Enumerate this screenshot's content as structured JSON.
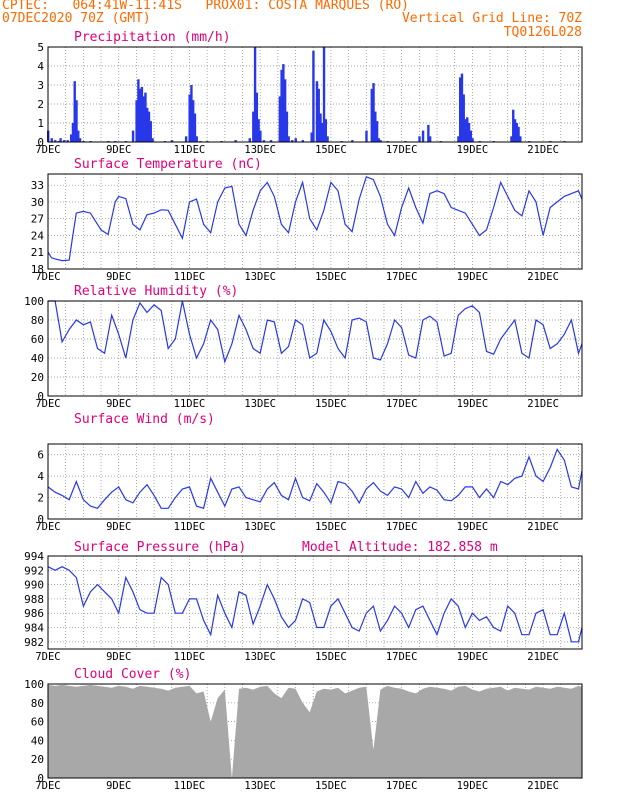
{
  "header": {
    "line1_left": "CPTEC:   064:41W-11:41S   PROX01: COSTA MARQUES (RO)",
    "line2_left": "07DEC2020 70Z (GMT)",
    "line2_right": "Vertical Grid Line: 70Z",
    "line3_right": "TQ0126L028"
  },
  "colors": {
    "header": "#ff6a00",
    "titles": "#e0007a",
    "line": "#2838e8",
    "bars": "#2838e8",
    "cloud": "#a8a8a8",
    "grid": "#888888"
  },
  "x_axis": {
    "ticks": [
      "7DEC",
      "9DEC",
      "11DEC",
      "13DEC",
      "15DEC",
      "17DEC",
      "19DEC",
      "21DEC"
    ],
    "tick_days": [
      7,
      9,
      11,
      13,
      15,
      17,
      19,
      21
    ],
    "range_days": [
      7,
      22.1
    ]
  },
  "chart_data": [
    {
      "type": "bar",
      "title": "Precipitation (mm/h)",
      "ylim": [
        0,
        5
      ],
      "yticks": [
        "0",
        "1",
        "2",
        "3",
        "4",
        "5"
      ],
      "ytick_values": [
        0,
        1,
        2,
        3,
        4,
        5
      ],
      "x_days": [
        7.0,
        7.1,
        7.2,
        7.3,
        7.35,
        7.45,
        7.55,
        7.65,
        7.7,
        7.75,
        7.8,
        7.85,
        7.9,
        8.0,
        8.2,
        8.7,
        8.9,
        9.2,
        9.4,
        9.5,
        9.55,
        9.6,
        9.65,
        9.7,
        9.75,
        9.8,
        9.85,
        9.9,
        9.95,
        10.3,
        10.5,
        10.9,
        11.0,
        11.05,
        11.1,
        11.15,
        11.2,
        11.3,
        11.5,
        11.9,
        12.3,
        12.7,
        12.8,
        12.85,
        12.9,
        12.95,
        13.0,
        13.1,
        13.3,
        13.55,
        13.6,
        13.65,
        13.7,
        13.75,
        13.8,
        13.9,
        14.0,
        14.2,
        14.45,
        14.5,
        14.6,
        14.65,
        14.7,
        14.75,
        14.8,
        14.85,
        14.9,
        15.3,
        15.6,
        16.0,
        16.15,
        16.2,
        16.25,
        16.3,
        16.35,
        16.4,
        16.6,
        17.1,
        17.5,
        17.6,
        17.75,
        17.8,
        18.1,
        18.6,
        18.65,
        18.7,
        18.75,
        18.8,
        18.85,
        18.9,
        18.95,
        19.0,
        19.2,
        19.6,
        20.1,
        20.15,
        20.2,
        20.25,
        20.3,
        20.35,
        20.6,
        21.2,
        21.6
      ],
      "values": [
        0.6,
        0.2,
        0.1,
        0.05,
        0.2,
        0.1,
        0.1,
        0.4,
        1.0,
        3.2,
        2.2,
        0.6,
        0.2,
        0.05,
        0.05,
        0.05,
        0.05,
        0.05,
        0.6,
        2.2,
        3.3,
        2.8,
        2.9,
        2.4,
        2.6,
        1.8,
        1.6,
        1.1,
        0.2,
        0.05,
        0.1,
        0.3,
        2.5,
        3.0,
        2.2,
        1.5,
        0.3,
        0.05,
        0.05,
        0.05,
        0.1,
        0.2,
        1.6,
        5.0,
        2.6,
        1.2,
        0.6,
        0.1,
        0.1,
        2.4,
        3.8,
        4.1,
        3.3,
        1.6,
        0.3,
        0.1,
        0.2,
        0.1,
        0.5,
        4.8,
        3.2,
        2.8,
        1.5,
        1.0,
        5.0,
        1.2,
        0.3,
        0.05,
        0.1,
        0.6,
        2.8,
        3.1,
        1.6,
        1.1,
        0.2,
        0.1,
        0.05,
        0.05,
        0.3,
        0.6,
        0.9,
        0.3,
        0.05,
        0.3,
        3.4,
        3.6,
        2.5,
        1.2,
        1.3,
        1.0,
        0.6,
        0.2,
        0.05,
        0.05,
        0.3,
        1.7,
        1.2,
        1.0,
        0.8,
        0.3,
        0.05,
        0.05,
        0.05
      ]
    },
    {
      "type": "line",
      "title": "Surface Temperature (nC)",
      "ylim": [
        18,
        35
      ],
      "yticks": [
        "18",
        "21",
        "24",
        "27",
        "30",
        "33"
      ],
      "ytick_values": [
        18,
        21,
        24,
        27,
        30,
        33
      ],
      "x_days": [
        7.0,
        7.1,
        7.2,
        7.4,
        7.6,
        7.7,
        7.8,
        8.0,
        8.2,
        8.4,
        8.5,
        8.7,
        8.9,
        9.0,
        9.2,
        9.4,
        9.6,
        9.8,
        10.0,
        10.2,
        10.4,
        10.6,
        10.8,
        11.0,
        11.2,
        11.4,
        11.6,
        11.8,
        12.0,
        12.2,
        12.4,
        12.6,
        12.8,
        13.0,
        13.2,
        13.4,
        13.6,
        13.8,
        14.0,
        14.2,
        14.4,
        14.6,
        14.8,
        15.0,
        15.2,
        15.4,
        15.6,
        15.8,
        16.0,
        16.2,
        16.4,
        16.6,
        16.8,
        17.0,
        17.2,
        17.4,
        17.6,
        17.8,
        18.0,
        18.2,
        18.4,
        18.6,
        18.8,
        19.0,
        19.2,
        19.4,
        19.6,
        19.8,
        20.0,
        20.2,
        20.4,
        20.6,
        20.8,
        21.0,
        21.2,
        21.4,
        21.6,
        21.8,
        22.0,
        22.1
      ],
      "values": [
        21,
        20,
        19.8,
        19.5,
        19.6,
        24,
        28,
        28.3,
        28,
        26,
        25,
        24.2,
        30,
        31,
        30.6,
        26,
        25,
        27.7,
        28,
        28.6,
        28.5,
        26,
        23.5,
        30,
        30.5,
        26,
        24.5,
        30,
        32.5,
        32.8,
        26,
        24,
        28.5,
        32,
        33.5,
        31,
        26,
        24.5,
        30,
        33.5,
        27,
        25,
        28.5,
        33.5,
        32,
        26,
        24.7,
        30.5,
        34.5,
        34,
        31,
        26,
        24,
        29,
        32.5,
        29,
        26.2,
        31.5,
        32,
        31.5,
        29,
        28.5,
        28,
        26,
        24,
        25,
        29,
        33.5,
        31,
        28.5,
        27.5,
        32,
        30,
        24,
        29,
        30,
        31,
        31.5,
        32,
        30.5
      ]
    },
    {
      "type": "line",
      "title": "Relative Humidity (%)",
      "ylim": [
        0,
        100
      ],
      "yticks": [
        "0",
        "20",
        "40",
        "60",
        "80",
        "100"
      ],
      "ytick_values": [
        0,
        20,
        40,
        60,
        80,
        100
      ],
      "x_days": [
        7.0,
        7.2,
        7.4,
        7.6,
        7.8,
        8.0,
        8.2,
        8.4,
        8.6,
        8.8,
        9.0,
        9.2,
        9.4,
        9.6,
        9.8,
        10.0,
        10.2,
        10.4,
        10.6,
        10.8,
        11.0,
        11.2,
        11.4,
        11.6,
        11.8,
        12.0,
        12.2,
        12.4,
        12.6,
        12.8,
        13.0,
        13.2,
        13.4,
        13.6,
        13.8,
        14.0,
        14.2,
        14.4,
        14.6,
        14.8,
        15.0,
        15.2,
        15.4,
        15.6,
        15.8,
        16.0,
        16.2,
        16.4,
        16.6,
        16.8,
        17.0,
        17.2,
        17.4,
        17.6,
        17.8,
        18.0,
        18.2,
        18.4,
        18.6,
        18.8,
        19.0,
        19.2,
        19.4,
        19.6,
        19.8,
        20.0,
        20.2,
        20.4,
        20.6,
        20.8,
        21.0,
        21.2,
        21.4,
        21.6,
        21.8,
        22.0,
        22.1
      ],
      "values": [
        100,
        100,
        57,
        70,
        80,
        75,
        78,
        50,
        45,
        85,
        65,
        40,
        80,
        98,
        88,
        96,
        90,
        50,
        60,
        100,
        65,
        40,
        55,
        80,
        70,
        36,
        55,
        85,
        70,
        50,
        45,
        80,
        78,
        45,
        52,
        80,
        75,
        40,
        45,
        80,
        68,
        50,
        40,
        80,
        82,
        78,
        40,
        38,
        55,
        80,
        72,
        43,
        40,
        80,
        84,
        78,
        42,
        45,
        85,
        92,
        95,
        88,
        47,
        44,
        60,
        70,
        80,
        45,
        40,
        80,
        75,
        50,
        55,
        65,
        80,
        45,
        55
      ]
    },
    {
      "type": "line",
      "title": "Surface Wind (m/s)",
      "ylim": [
        0,
        7
      ],
      "yticks": [
        "0",
        "2",
        "4",
        "6"
      ],
      "ytick_values": [
        0,
        2,
        4,
        6
      ],
      "x_days": [
        7.0,
        7.2,
        7.4,
        7.6,
        7.8,
        8.0,
        8.2,
        8.4,
        8.6,
        8.8,
        9.0,
        9.2,
        9.4,
        9.6,
        9.8,
        10.0,
        10.2,
        10.4,
        10.6,
        10.8,
        11.0,
        11.2,
        11.4,
        11.6,
        11.8,
        12.0,
        12.2,
        12.4,
        12.6,
        12.8,
        13.0,
        13.2,
        13.4,
        13.6,
        13.8,
        14.0,
        14.2,
        14.4,
        14.6,
        14.8,
        15.0,
        15.2,
        15.4,
        15.6,
        15.8,
        16.0,
        16.2,
        16.4,
        16.6,
        16.8,
        17.0,
        17.2,
        17.4,
        17.6,
        17.8,
        18.0,
        18.2,
        18.4,
        18.6,
        18.8,
        19.0,
        19.2,
        19.4,
        19.6,
        19.8,
        20.0,
        20.2,
        20.4,
        20.6,
        20.8,
        21.0,
        21.2,
        21.4,
        21.6,
        21.8,
        22.0,
        22.1
      ],
      "values": [
        3.0,
        2.5,
        2.2,
        1.8,
        3.5,
        1.8,
        1.2,
        1.0,
        1.8,
        2.5,
        3.0,
        1.8,
        1.5,
        2.5,
        3.2,
        2.2,
        1.0,
        1.0,
        2.0,
        2.8,
        3.0,
        1.2,
        1.0,
        3.8,
        2.5,
        1.2,
        2.8,
        3.0,
        2.0,
        1.8,
        1.6,
        2.8,
        3.4,
        2.2,
        1.8,
        3.8,
        2.0,
        1.7,
        3.3,
        2.5,
        1.5,
        3.5,
        3.3,
        2.6,
        1.5,
        2.8,
        3.4,
        2.6,
        2.2,
        3.0,
        2.8,
        2.0,
        3.5,
        2.4,
        3.0,
        2.7,
        1.8,
        1.7,
        2.2,
        3.0,
        3.0,
        2.0,
        2.8,
        2.0,
        3.5,
        3.2,
        3.8,
        4.0,
        5.8,
        4.0,
        3.5,
        4.8,
        6.5,
        5.5,
        3.0,
        2.8,
        4.5
      ]
    },
    {
      "type": "line",
      "title": "Surface Pressure (hPa)",
      "subtitle": "Model Altitude: 182.858  m",
      "ylim": [
        981,
        994
      ],
      "yticks": [
        "982",
        "984",
        "986",
        "988",
        "990",
        "992",
        "994"
      ],
      "ytick_values": [
        982,
        984,
        986,
        988,
        990,
        992,
        994
      ],
      "x_days": [
        7.0,
        7.2,
        7.4,
        7.6,
        7.8,
        8.0,
        8.2,
        8.4,
        8.6,
        8.8,
        9.0,
        9.2,
        9.4,
        9.6,
        9.8,
        10.0,
        10.2,
        10.4,
        10.6,
        10.8,
        11.0,
        11.2,
        11.4,
        11.6,
        11.8,
        12.0,
        12.2,
        12.4,
        12.6,
        12.8,
        13.0,
        13.2,
        13.4,
        13.6,
        13.8,
        14.0,
        14.2,
        14.4,
        14.6,
        14.8,
        15.0,
        15.2,
        15.4,
        15.6,
        15.8,
        16.0,
        16.2,
        16.4,
        16.6,
        16.8,
        17.0,
        17.2,
        17.4,
        17.6,
        17.8,
        18.0,
        18.2,
        18.4,
        18.6,
        18.8,
        19.0,
        19.2,
        19.4,
        19.6,
        19.8,
        20.0,
        20.2,
        20.4,
        20.6,
        20.8,
        21.0,
        21.2,
        21.4,
        21.6,
        21.8,
        22.0,
        22.1
      ],
      "values": [
        992.5,
        992,
        992.5,
        992,
        991,
        987,
        989,
        990,
        989,
        988,
        986,
        991,
        989,
        986.5,
        986,
        986,
        991,
        990,
        986,
        986,
        988,
        988,
        985,
        983,
        988.5,
        986,
        984,
        989,
        988.5,
        984.5,
        987,
        990,
        988,
        985.5,
        984,
        985,
        988,
        987.5,
        984,
        984,
        987,
        988,
        986,
        984,
        983.5,
        986,
        987,
        983.5,
        985,
        987,
        986,
        984,
        986.5,
        987,
        985,
        983,
        986,
        988,
        987,
        984,
        986,
        985,
        985.5,
        984,
        983.5,
        987,
        986,
        983,
        983,
        986,
        986.5,
        983,
        983,
        986,
        982,
        982,
        984
      ]
    },
    {
      "type": "area",
      "title": "Cloud Cover (%)",
      "ylim": [
        0,
        100
      ],
      "yticks": [
        "0",
        "20",
        "40",
        "60",
        "80",
        "100"
      ],
      "ytick_values": [
        0,
        20,
        40,
        60,
        80,
        100
      ],
      "x_days": [
        7.0,
        7.2,
        7.4,
        7.6,
        7.8,
        8.0,
        8.2,
        8.4,
        8.6,
        8.8,
        9.0,
        9.2,
        9.4,
        9.6,
        9.8,
        10.0,
        10.2,
        10.4,
        10.6,
        10.8,
        11.0,
        11.2,
        11.4,
        11.6,
        11.8,
        12.0,
        12.2,
        12.4,
        12.6,
        12.8,
        13.0,
        13.2,
        13.4,
        13.6,
        13.8,
        14.0,
        14.2,
        14.4,
        14.6,
        14.8,
        15.0,
        15.2,
        15.4,
        15.6,
        15.8,
        16.0,
        16.2,
        16.4,
        16.6,
        16.8,
        17.0,
        17.2,
        17.4,
        17.6,
        17.8,
        18.0,
        18.2,
        18.4,
        18.6,
        18.8,
        19.0,
        19.2,
        19.4,
        19.6,
        19.8,
        20.0,
        20.2,
        20.4,
        20.6,
        20.8,
        21.0,
        21.2,
        21.4,
        21.6,
        21.8,
        22.0,
        22.1
      ],
      "values": [
        99,
        98,
        99,
        98,
        97,
        98,
        99,
        98,
        97,
        96,
        98,
        97,
        95,
        98,
        97,
        96,
        95,
        93,
        96,
        97,
        98,
        90,
        92,
        60,
        85,
        94,
        0,
        95,
        96,
        94,
        97,
        98,
        90,
        85,
        96,
        95,
        80,
        70,
        92,
        95,
        94,
        96,
        90,
        93,
        96,
        97,
        30,
        94,
        98,
        96,
        95,
        92,
        90,
        95,
        97,
        96,
        95,
        93,
        97,
        98,
        94,
        92,
        95,
        96,
        97,
        93,
        96,
        95,
        94,
        97,
        96,
        95,
        97,
        96,
        95,
        98,
        97
      ]
    }
  ]
}
